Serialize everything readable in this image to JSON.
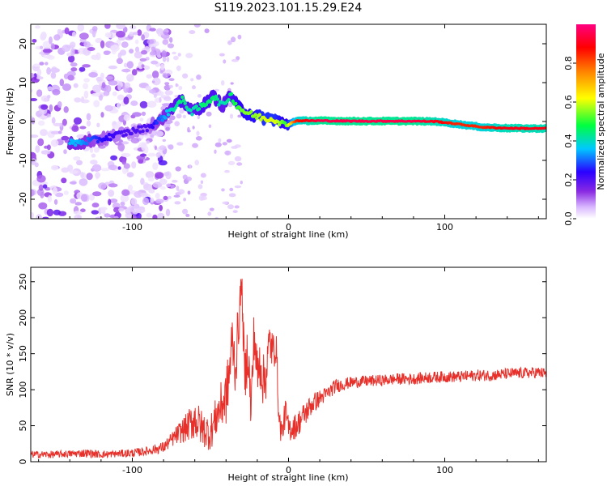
{
  "chart_data": [
    {
      "type": "heatmap",
      "title": "S119.2023.101.15.29.E24",
      "xlabel": "Height of straight line (km)",
      "ylabel": "Frequency (Hz)",
      "xlim": [
        -165,
        165
      ],
      "ylim": [
        -25,
        25
      ],
      "xticks": [
        -100,
        0,
        100
      ],
      "yticks": [
        -20,
        -10,
        0,
        10,
        20
      ],
      "colorbar": {
        "label": "Normalized spectral amplitude",
        "range": [
          0.0,
          1.0
        ],
        "ticks": [
          0.0,
          0.2,
          0.4,
          0.6,
          0.8
        ],
        "colormap": [
          "#ffffff",
          "#d9b8ff",
          "#8a2be2",
          "#2a00ff",
          "#00c8ff",
          "#00ff40",
          "#ffff00",
          "#ff8000",
          "#ff0000",
          "#ff0080"
        ]
      },
      "ridge": [
        {
          "x": -135,
          "y": -5.5,
          "a": 0.35
        },
        {
          "x": -120,
          "y": -4.5,
          "a": 0.25
        },
        {
          "x": -105,
          "y": -3.0,
          "a": 0.2
        },
        {
          "x": -90,
          "y": -1.5,
          "a": 0.2
        },
        {
          "x": -82,
          "y": 0.5,
          "a": 0.3
        },
        {
          "x": -75,
          "y": 3.0,
          "a": 0.4
        },
        {
          "x": -68,
          "y": 5.5,
          "a": 0.45
        },
        {
          "x": -62,
          "y": 2.5,
          "a": 0.4
        },
        {
          "x": -55,
          "y": 4.0,
          "a": 0.45
        },
        {
          "x": -48,
          "y": 6.5,
          "a": 0.45
        },
        {
          "x": -42,
          "y": 4.0,
          "a": 0.4
        },
        {
          "x": -37,
          "y": 7.0,
          "a": 0.45
        },
        {
          "x": -33,
          "y": 4.0,
          "a": 0.5
        },
        {
          "x": -28,
          "y": 2.5,
          "a": 0.55
        },
        {
          "x": -22,
          "y": 1.5,
          "a": 0.55
        },
        {
          "x": -15,
          "y": 0.8,
          "a": 0.6
        },
        {
          "x": -8,
          "y": 0.5,
          "a": 0.6
        },
        {
          "x": -2,
          "y": -1.0,
          "a": 0.5
        },
        {
          "x": 5,
          "y": 0.2,
          "a": 0.85
        },
        {
          "x": 20,
          "y": 0.2,
          "a": 0.95
        },
        {
          "x": 40,
          "y": 0.1,
          "a": 0.95
        },
        {
          "x": 60,
          "y": 0.1,
          "a": 0.95
        },
        {
          "x": 80,
          "y": 0.1,
          "a": 0.95
        },
        {
          "x": 95,
          "y": 0.0,
          "a": 0.9
        },
        {
          "x": 105,
          "y": -0.5,
          "a": 0.85
        },
        {
          "x": 115,
          "y": -1.0,
          "a": 0.85
        },
        {
          "x": 125,
          "y": -1.5,
          "a": 0.85
        },
        {
          "x": 140,
          "y": -1.7,
          "a": 0.9
        },
        {
          "x": 155,
          "y": -1.8,
          "a": 0.9
        },
        {
          "x": 165,
          "y": -1.8,
          "a": 0.9
        }
      ]
    },
    {
      "type": "line",
      "title": "",
      "xlabel": "Height of straight line (km)",
      "ylabel": "SNR (10 * v/v)",
      "xlim": [
        -165,
        165
      ],
      "ylim": [
        0,
        270
      ],
      "xticks": [
        -100,
        0,
        100
      ],
      "yticks": [
        0,
        50,
        100,
        150,
        200,
        250
      ],
      "color": "#e8302a",
      "series": [
        {
          "x": [
            -165,
            -150,
            -140,
            -130,
            -120,
            -110,
            -100,
            -90,
            -80,
            -75,
            -70,
            -65,
            -60,
            -55,
            -50,
            -45,
            -40,
            -38,
            -36,
            -34,
            -32,
            -30,
            -28,
            -26,
            -24,
            -22,
            -20,
            -18,
            -16,
            -14,
            -12,
            -10,
            -8,
            -6,
            -4,
            -2,
            0,
            5,
            10,
            15,
            20,
            25,
            30,
            40,
            50,
            60,
            70,
            80,
            90,
            100,
            110,
            120,
            130,
            140,
            150,
            160,
            165
          ],
          "y": [
            10,
            10,
            11,
            12,
            10,
            11,
            12,
            15,
            20,
            30,
            40,
            48,
            60,
            45,
            40,
            70,
            90,
            120,
            170,
            130,
            190,
            250,
            110,
            160,
            70,
            180,
            120,
            140,
            110,
            130,
            170,
            150,
            165,
            55,
            40,
            70,
            45,
            50,
            65,
            80,
            88,
            95,
            105,
            110,
            112,
            113,
            115,
            115,
            117,
            118,
            118,
            120,
            120,
            122,
            123,
            124,
            122
          ],
          "spread": [
            5,
            5,
            5,
            6,
            5,
            5,
            6,
            6,
            8,
            10,
            15,
            20,
            30,
            25,
            25,
            30,
            40,
            40,
            40,
            40,
            40,
            20,
            40,
            40,
            40,
            40,
            40,
            40,
            40,
            40,
            30,
            30,
            25,
            20,
            18,
            20,
            18,
            18,
            18,
            15,
            12,
            10,
            10,
            8,
            8,
            8,
            8,
            8,
            8,
            8,
            8,
            8,
            8,
            8,
            8,
            8,
            8
          ]
        }
      ]
    }
  ]
}
